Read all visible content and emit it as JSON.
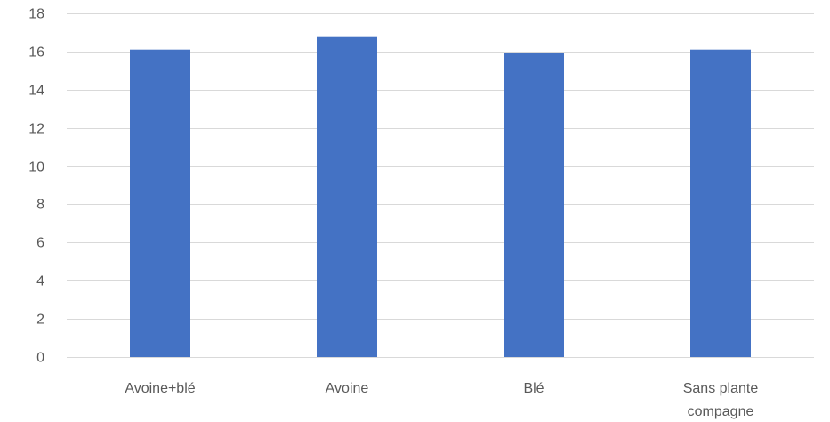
{
  "chart_data": {
    "type": "bar",
    "categories": [
      [
        "Avoine+blé"
      ],
      [
        "Avoine"
      ],
      [
        "Blé"
      ],
      [
        "Sans plante",
        "compagne"
      ]
    ],
    "values": [
      16.1,
      16.8,
      15.95,
      16.1
    ],
    "ylim": [
      0,
      18
    ],
    "yticks": [
      "0",
      "2",
      "4",
      "6",
      "8",
      "10",
      "12",
      "14",
      "16",
      "18"
    ],
    "ytick_values": [
      0,
      2,
      4,
      6,
      8,
      10,
      12,
      14,
      16,
      18
    ],
    "grid": true,
    "bar_color": "#4472c4",
    "grid_color": "#d9d9d9",
    "text_color": "#595959",
    "title": "",
    "xlabel": "",
    "ylabel": ""
  }
}
